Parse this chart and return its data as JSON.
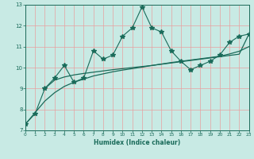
{
  "xlabel": "Humidex (Indice chaleur)",
  "bg_color": "#c8eae4",
  "line_color": "#1a6b5a",
  "grid_color": "#e8a0a0",
  "x_min": 0,
  "x_max": 23,
  "y_min": 7,
  "y_max": 13,
  "line1_x": [
    0,
    1,
    2,
    3,
    4,
    5,
    6,
    7,
    8,
    9,
    10,
    11,
    12,
    13,
    14,
    15,
    16,
    17,
    18,
    19,
    20,
    21,
    22,
    23
  ],
  "line1_y": [
    7.3,
    7.8,
    9.0,
    9.5,
    10.1,
    9.3,
    9.5,
    10.8,
    10.4,
    10.6,
    11.5,
    11.9,
    12.9,
    11.9,
    11.7,
    10.8,
    10.3,
    9.9,
    10.1,
    10.3,
    10.6,
    11.2,
    11.5,
    11.6
  ],
  "line2_x": [
    0,
    1,
    2,
    3,
    4,
    5,
    6,
    7,
    8,
    9,
    10,
    11,
    12,
    13,
    14,
    15,
    16,
    17,
    18,
    19,
    20,
    21,
    22,
    23
  ],
  "line2_y": [
    7.3,
    7.85,
    8.4,
    8.8,
    9.1,
    9.3,
    9.45,
    9.6,
    9.7,
    9.8,
    9.88,
    9.95,
    10.02,
    10.1,
    10.17,
    10.24,
    10.3,
    10.36,
    10.42,
    10.48,
    10.54,
    10.65,
    10.78,
    11.0
  ],
  "line3_x": [
    2,
    3,
    4,
    5,
    6,
    7,
    8,
    9,
    10,
    11,
    12,
    13,
    14,
    15,
    16,
    17,
    18,
    19,
    20,
    21,
    22,
    23
  ],
  "line3_y": [
    9.0,
    9.4,
    9.55,
    9.65,
    9.72,
    9.78,
    9.84,
    9.9,
    9.95,
    10.0,
    10.05,
    10.1,
    10.16,
    10.22,
    10.28,
    10.34,
    10.4,
    10.46,
    10.52,
    10.58,
    10.64,
    11.6
  ]
}
